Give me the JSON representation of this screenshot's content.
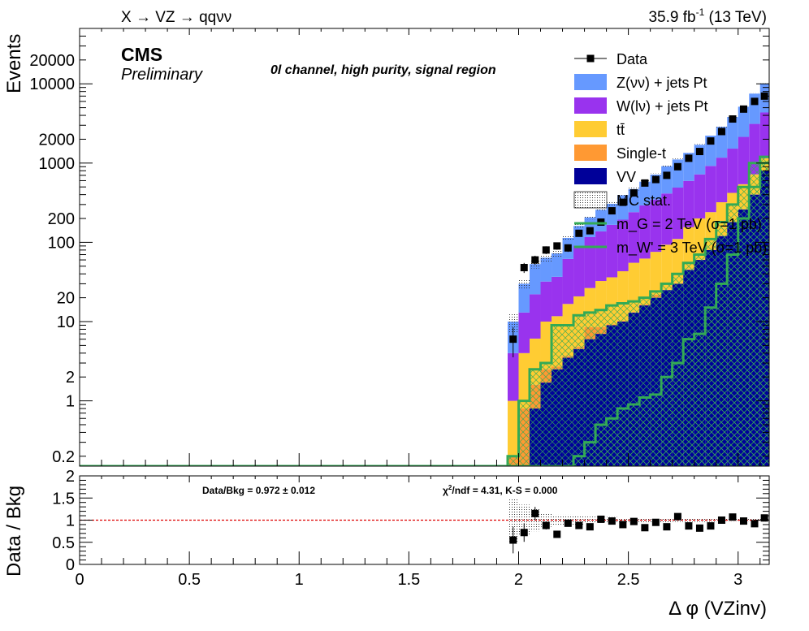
{
  "header": {
    "process": "X → VZ → qqνν",
    "lumi_value": "35.9 fb",
    "lumi_exp": "-1",
    "energy": "(13 TeV)",
    "experiment": "CMS",
    "status": "Preliminary",
    "region": "0l channel, high purity, signal region"
  },
  "ratio_text": {
    "data_bkg": "Data/Bkg = 0.972 ± 0.012",
    "chi2_prefix": "χ",
    "chi2_sup": "2",
    "chi2_rest": "/ndf = 4.31,   K-S = 0.000"
  },
  "colors": {
    "znn": "#6699ff",
    "wln": "#9933ee",
    "ttbar": "#ffcc33",
    "singlet": "#ff9933",
    "vv": "#000099",
    "signal": "#33aa55",
    "ratio_line": "#dd0000"
  },
  "chart_data": [
    {
      "type": "bar",
      "stacked": true,
      "ylabel": "Events",
      "log_y": true,
      "xlim": [
        0,
        3.1416
      ],
      "ylim": [
        0.15,
        50000
      ],
      "y_ticks": [
        "0.2",
        "1",
        "2",
        "10",
        "20",
        "100",
        "200",
        "1000",
        "2000",
        "10000",
        "20000"
      ],
      "bin_edges": [
        1.95,
        2.0,
        2.05,
        2.1,
        2.15,
        2.2,
        2.25,
        2.3,
        2.35,
        2.4,
        2.45,
        2.5,
        2.55,
        2.6,
        2.65,
        2.7,
        2.75,
        2.8,
        2.85,
        2.9,
        2.95,
        3.0,
        3.05,
        3.1,
        3.1416
      ],
      "series": [
        {
          "name": "VV",
          "key": "vv",
          "values": [
            0,
            0,
            0.8,
            1.7,
            2.5,
            3.5,
            4.5,
            6,
            7,
            9,
            10,
            13,
            16,
            20,
            25,
            30,
            45,
            60,
            80,
            120,
            180,
            260,
            400,
            800
          ]
        },
        {
          "name": "Single-t",
          "key": "singlet",
          "values": [
            0.2,
            0.8,
            0.8,
            0.8,
            0.2,
            0.2,
            0.3,
            2.5,
            1.5,
            0.2,
            0.2,
            0.2,
            0.4,
            1.8,
            0.3,
            0.4,
            0.4,
            0.4,
            0.5,
            0.6,
            0.7,
            0.8,
            1.0,
            1.2
          ]
        },
        {
          "name": "tt̄",
          "key": "ttbar",
          "values": [
            0.8,
            3.2,
            4.5,
            7.5,
            9,
            13,
            16,
            18,
            24,
            27,
            33,
            42,
            46,
            54,
            68,
            80,
            110,
            140,
            160,
            200,
            240,
            280,
            320,
            350
          ]
        },
        {
          "name": "W(lν) + jets Pt",
          "key": "wln",
          "values": [
            3.0,
            9,
            16,
            22,
            25,
            45,
            70,
            90,
            105,
            130,
            150,
            185,
            230,
            270,
            320,
            380,
            440,
            520,
            680,
            850,
            1100,
            1600,
            2400,
            3200
          ]
        },
        {
          "name": "Z(νν) + jets Pt",
          "key": "znn",
          "values": [
            6,
            17,
            31,
            32,
            36,
            52,
            70,
            90,
            120,
            140,
            200,
            230,
            290,
            370,
            500,
            620,
            750,
            980,
            1300,
            1700,
            2300,
            3000,
            4400,
            5700
          ]
        }
      ],
      "data": {
        "name": "Data",
        "x": [
          1.975,
          2.025,
          2.075,
          2.125,
          2.175,
          2.225,
          2.275,
          2.325,
          2.375,
          2.425,
          2.475,
          2.525,
          2.575,
          2.625,
          2.675,
          2.725,
          2.775,
          2.825,
          2.875,
          2.925,
          2.975,
          3.025,
          3.075,
          3.12
        ],
        "y": [
          6,
          48,
          60,
          80,
          90,
          85,
          130,
          140,
          180,
          250,
          320,
          420,
          560,
          620,
          700,
          900,
          1150,
          1400,
          1900,
          2500,
          3600,
          4800,
          6000,
          7000
        ]
      },
      "signals": [
        {
          "name": "m_G = 2 TeV (σ=1 pb)",
          "values": [
            0,
            0,
            0,
            0,
            0,
            0,
            0.2,
            0.3,
            0.5,
            0.6,
            0.8,
            0.9,
            1.1,
            1.2,
            2,
            3,
            6,
            7,
            15,
            30,
            70,
            200,
            500,
            1000
          ]
        },
        {
          "name": "m_W' = 3 TeV (σ=1 pb)",
          "values": [
            0.2,
            1,
            2.5,
            3,
            9,
            9,
            12,
            13,
            14,
            16,
            17,
            18,
            20,
            24,
            30,
            40,
            55,
            70,
            110,
            180,
            300,
            500,
            1000,
            1200
          ]
        }
      ],
      "legend": {
        "placement": "top-right",
        "entries": [
          "Data",
          "Z(νν) + jets Pt",
          "W(lν) + jets Pt",
          "tt̄",
          "Single-t",
          "VV",
          "MC stat.",
          "m_G = 2 TeV (σ=1 pb)",
          "m_W' = 3 TeV (σ=1 pb)"
        ]
      }
    },
    {
      "type": "scatter",
      "ylabel": "Data / Bkg",
      "xlabel": "Δ φ (VZinv)",
      "xlim": [
        0,
        3.1416
      ],
      "ylim": [
        0,
        2
      ],
      "x_ticks": [
        "0",
        "0.5",
        "1",
        "1.5",
        "2",
        "2.5",
        "3"
      ],
      "y_ticks": [
        "0",
        "0.5",
        "1",
        "1.5",
        "2"
      ],
      "reference_line": 1,
      "x": [
        1.975,
        2.025,
        2.075,
        2.125,
        2.175,
        2.225,
        2.275,
        2.325,
        2.375,
        2.425,
        2.475,
        2.525,
        2.575,
        2.625,
        2.675,
        2.725,
        2.775,
        2.825,
        2.875,
        2.925,
        2.975,
        3.025,
        3.075,
        3.12
      ],
      "y": [
        0.55,
        0.72,
        1.15,
        0.88,
        0.68,
        0.93,
        0.88,
        0.85,
        1.02,
        0.98,
        0.9,
        0.97,
        0.83,
        0.95,
        0.85,
        1.08,
        0.87,
        0.82,
        0.87,
        1.0,
        1.07,
        0.98,
        0.92,
        1.05
      ],
      "err": [
        0.5,
        0.35,
        0.25,
        0.15,
        0.12,
        0.12,
        0.1,
        0.08,
        0.07,
        0.07,
        0.06,
        0.06,
        0.05,
        0.05,
        0.05,
        0.04,
        0.04,
        0.04,
        0.04,
        0.03,
        0.03,
        0.03,
        0.03,
        0.03
      ]
    }
  ]
}
